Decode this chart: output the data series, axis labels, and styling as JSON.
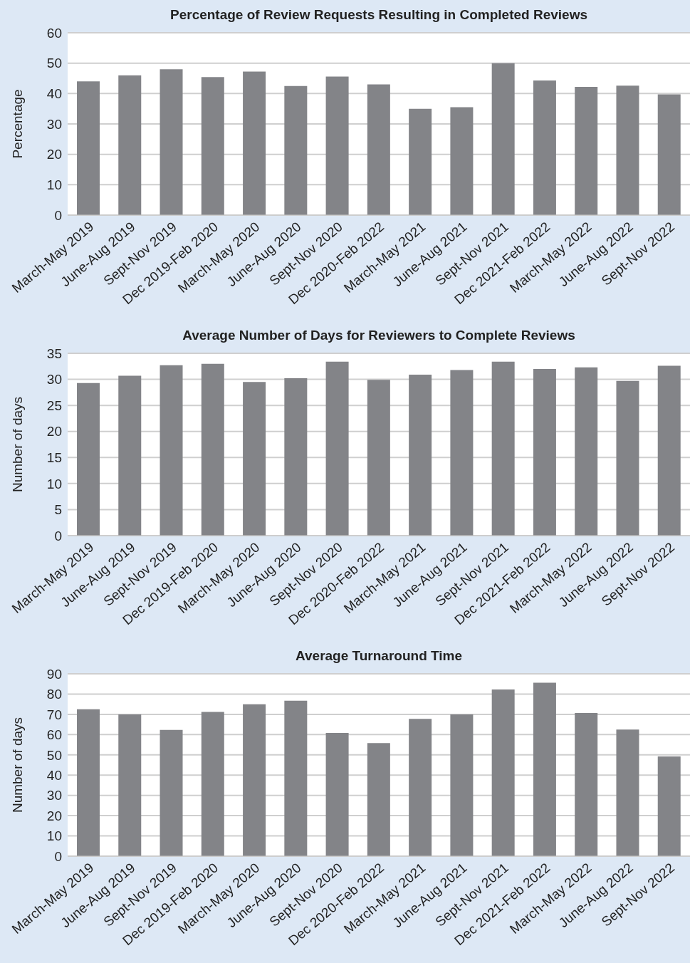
{
  "chart_data": [
    {
      "type": "bar",
      "title": "Percentage of Review Requests Resulting in Completed Reviews",
      "ylabel": "Percentage",
      "categories": [
        "March-May 2019",
        "June-Aug 2019",
        "Sept-Nov 2019",
        "Dec 2019-Feb 2020",
        "March-May 2020",
        "June-Aug 2020",
        "Sept-Nov 2020",
        "Dec 2020-Feb 2022",
        "March-May 2021",
        "June-Aug 2021",
        "Sept-Nov 2021",
        "Dec 2021-Feb 2022",
        "March-May 2022",
        "June-Aug 2022",
        "Sept-Nov 2022"
      ],
      "values": [
        44,
        46,
        48,
        45.4,
        47.2,
        42.5,
        45.6,
        43,
        35,
        35.5,
        50,
        44.3,
        42.2,
        42.6,
        39.7
      ],
      "color": "#838488",
      "ylim": [
        0,
        60
      ],
      "yticks": [
        0,
        10,
        20,
        30,
        40,
        50,
        60
      ],
      "grid": "y",
      "legend": false
    },
    {
      "type": "bar",
      "title": "Average Number of Days for Reviewers to Complete Reviews",
      "ylabel": "Number of days",
      "categories": [
        "March-May 2019",
        "June-Aug 2019",
        "Sept-Nov 2019",
        "Dec 2019-Feb 2020",
        "March-May 2020",
        "June-Aug 2020",
        "Sept-Nov 2020",
        "Dec 2020-Feb 2022",
        "March-May 2021",
        "June-Aug 2021",
        "Sept-Nov 2021",
        "Dec 2021-Feb 2022",
        "March-May 2022",
        "June-Aug 2022",
        "Sept-Nov 2022"
      ],
      "values": [
        29.3,
        30.7,
        32.7,
        33,
        29.5,
        30.2,
        33.4,
        29.9,
        30.9,
        31.8,
        33.4,
        32,
        32.3,
        29.7,
        32.6
      ],
      "color": "#838488",
      "ylim": [
        0,
        35
      ],
      "yticks": [
        0,
        5,
        10,
        15,
        20,
        25,
        30,
        35
      ],
      "grid": "y",
      "legend": false
    },
    {
      "type": "bar",
      "title": "Average Turnaround Time",
      "ylabel": "Number of days",
      "categories": [
        "March-May 2019",
        "June-Aug 2019",
        "Sept-Nov 2019",
        "Dec 2019-Feb 2020",
        "March-May 2020",
        "June-Aug 2020",
        "Sept-Nov 2020",
        "Dec 2020-Feb 2022",
        "March-May 2021",
        "June-Aug 2021",
        "Sept-Nov 2021",
        "Dec 2021-Feb 2022",
        "March-May 2022",
        "June-Aug 2022",
        "Sept-Nov 2022"
      ],
      "values": [
        72.5,
        70,
        62.3,
        71.2,
        75,
        76.7,
        60.8,
        55.8,
        67.8,
        70,
        82.3,
        85.6,
        70.7,
        62.5,
        49.2
      ],
      "color": "#838488",
      "ylim": [
        0,
        90
      ],
      "yticks": [
        0,
        10,
        20,
        30,
        40,
        50,
        60,
        70,
        80,
        90
      ],
      "grid": "y",
      "legend": false
    }
  ]
}
